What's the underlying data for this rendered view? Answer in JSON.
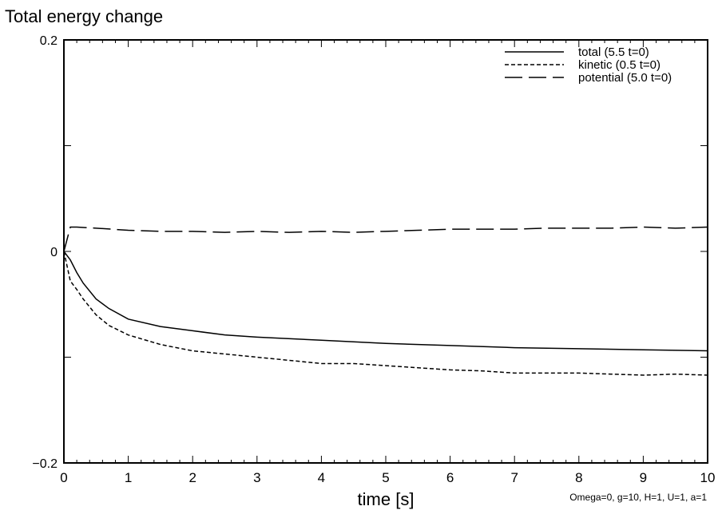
{
  "chart_data": {
    "type": "line",
    "title": "Total energy change",
    "xlabel": "time [s]",
    "ylabel": "",
    "xlim": [
      0,
      10
    ],
    "ylim": [
      -0.2,
      0.2
    ],
    "xticks": [
      "0",
      "1",
      "2",
      "3",
      "4",
      "5",
      "6",
      "7",
      "8",
      "9",
      "10"
    ],
    "yticks": [
      {
        "v": 0.2,
        "label": "0.2"
      },
      {
        "v": 0,
        "label": "0"
      },
      {
        "v": -0.2,
        "label": "−0.2"
      }
    ],
    "annotation": "Omega=0, g=10, H=1, U=1, a=1",
    "legend_position": "top-right",
    "series": [
      {
        "name": "total (5.5 t=0)",
        "style": "solid",
        "x": [
          0,
          0.1,
          0.2,
          0.3,
          0.5,
          0.7,
          1,
          1.5,
          2,
          2.5,
          3,
          4,
          5,
          6,
          7,
          8,
          9,
          10
        ],
        "y": [
          0,
          -0.008,
          -0.02,
          -0.03,
          -0.045,
          -0.054,
          -0.064,
          -0.071,
          -0.075,
          -0.079,
          -0.081,
          -0.084,
          -0.087,
          -0.089,
          -0.091,
          -0.092,
          -0.093,
          -0.094
        ]
      },
      {
        "name": "kinetic (0.5 t=0)",
        "style": "dashed",
        "x": [
          0,
          0.1,
          0.2,
          0.3,
          0.5,
          0.7,
          1,
          1.5,
          2,
          2.5,
          3,
          3.5,
          4,
          4.5,
          5,
          5.5,
          6,
          6.5,
          7,
          7.5,
          8,
          8.5,
          9,
          9.5,
          10
        ],
        "y": [
          0,
          -0.028,
          -0.036,
          -0.045,
          -0.06,
          -0.07,
          -0.079,
          -0.088,
          -0.094,
          -0.097,
          -0.1,
          -0.103,
          -0.106,
          -0.106,
          -0.108,
          -0.11,
          -0.112,
          -0.113,
          -0.115,
          -0.115,
          -0.115,
          -0.116,
          -0.117,
          -0.116,
          -0.117
        ]
      },
      {
        "name": "potential (5.0 t=0)",
        "style": "longdash",
        "x": [
          0,
          0.1,
          0.2,
          0.5,
          1,
          1.5,
          2,
          2.5,
          3,
          3.5,
          4,
          4.5,
          5,
          5.5,
          6,
          6.5,
          7,
          7.5,
          8,
          8.5,
          9,
          9.5,
          10
        ],
        "y": [
          0,
          0.023,
          0.023,
          0.022,
          0.02,
          0.019,
          0.019,
          0.018,
          0.019,
          0.018,
          0.019,
          0.018,
          0.019,
          0.02,
          0.021,
          0.021,
          0.021,
          0.022,
          0.022,
          0.022,
          0.023,
          0.022,
          0.023
        ]
      }
    ]
  }
}
